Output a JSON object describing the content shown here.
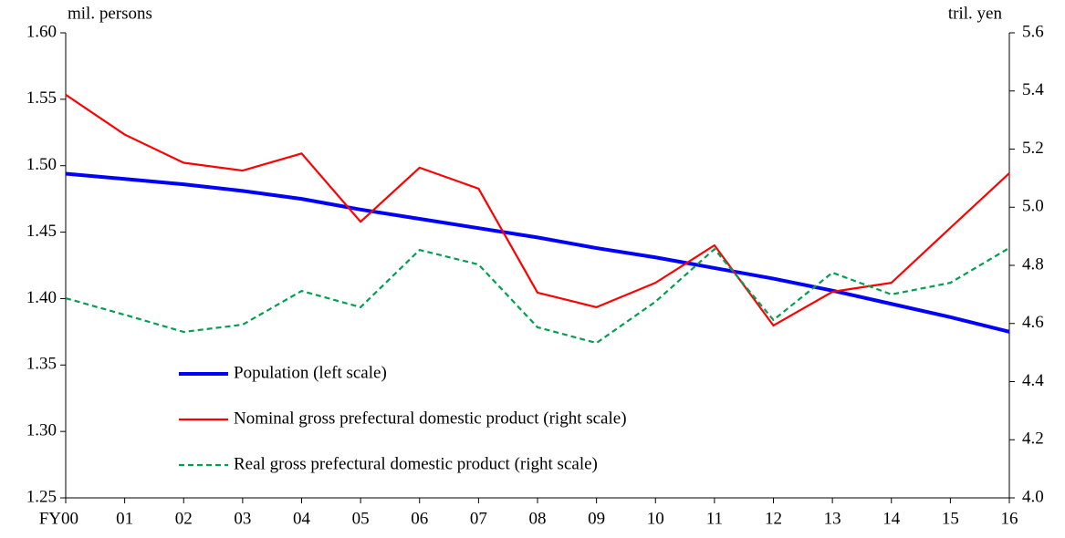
{
  "chart_data": {
    "type": "line",
    "y_label": "mil.  persons",
    "y2_label": "tril.  yen",
    "categories": [
      "FY00",
      "01",
      "02",
      "03",
      "04",
      "05",
      "06",
      "07",
      "08",
      "09",
      "10",
      "11",
      "12",
      "13",
      "14",
      "15",
      "16"
    ],
    "ylim": [
      1.25,
      1.6
    ],
    "yticks": [
      1.25,
      {
        "value": 1.3,
        "label": "1.30"
      },
      1.35,
      {
        "value": 1.4,
        "label": "1.40"
      },
      1.45,
      {
        "value": 1.5,
        "label": "1.50"
      },
      1.55,
      {
        "value": 1.6,
        "label": "1.60"
      }
    ],
    "y2lim": [
      4.0,
      5.6
    ],
    "y2ticks": [
      {
        "value": 4.0,
        "label": "4.0"
      },
      4.2,
      4.4,
      4.6,
      4.8,
      {
        "value": 5.0,
        "label": "5.0"
      },
      5.2,
      5.4,
      5.6
    ],
    "series": [
      {
        "name": "Population (left scale)",
        "color": "#0000ff",
        "axis": "y",
        "line_style": "solid",
        "values": [
          1.494,
          1.49,
          1.486,
          1.481,
          1.475,
          1.467,
          1.46,
          1.453,
          1.446,
          1.438,
          1.431,
          1.423,
          1.415,
          1.406,
          1.396,
          1.386,
          1.375
        ]
      },
      {
        "name": "Nominal gross prefectural domestic product (right scale)",
        "color": "#ff0000",
        "axis": "y2",
        "line_style": "solid",
        "values": [
          5.387,
          5.25,
          5.153,
          5.126,
          5.185,
          4.95,
          5.136,
          5.064,
          4.706,
          4.656,
          4.74,
          4.869,
          4.593,
          4.709,
          4.74,
          4.929,
          5.117
        ]
      },
      {
        "name": "Real gross prefectural domestic product (right scale)",
        "color": "#00a050",
        "axis": "y2",
        "line_style": "dashed",
        "values": [
          4.687,
          4.63,
          4.571,
          4.596,
          4.712,
          4.656,
          4.853,
          4.803,
          4.587,
          4.533,
          4.675,
          4.856,
          4.612,
          4.775,
          4.7,
          4.74,
          4.86
        ]
      }
    ]
  }
}
